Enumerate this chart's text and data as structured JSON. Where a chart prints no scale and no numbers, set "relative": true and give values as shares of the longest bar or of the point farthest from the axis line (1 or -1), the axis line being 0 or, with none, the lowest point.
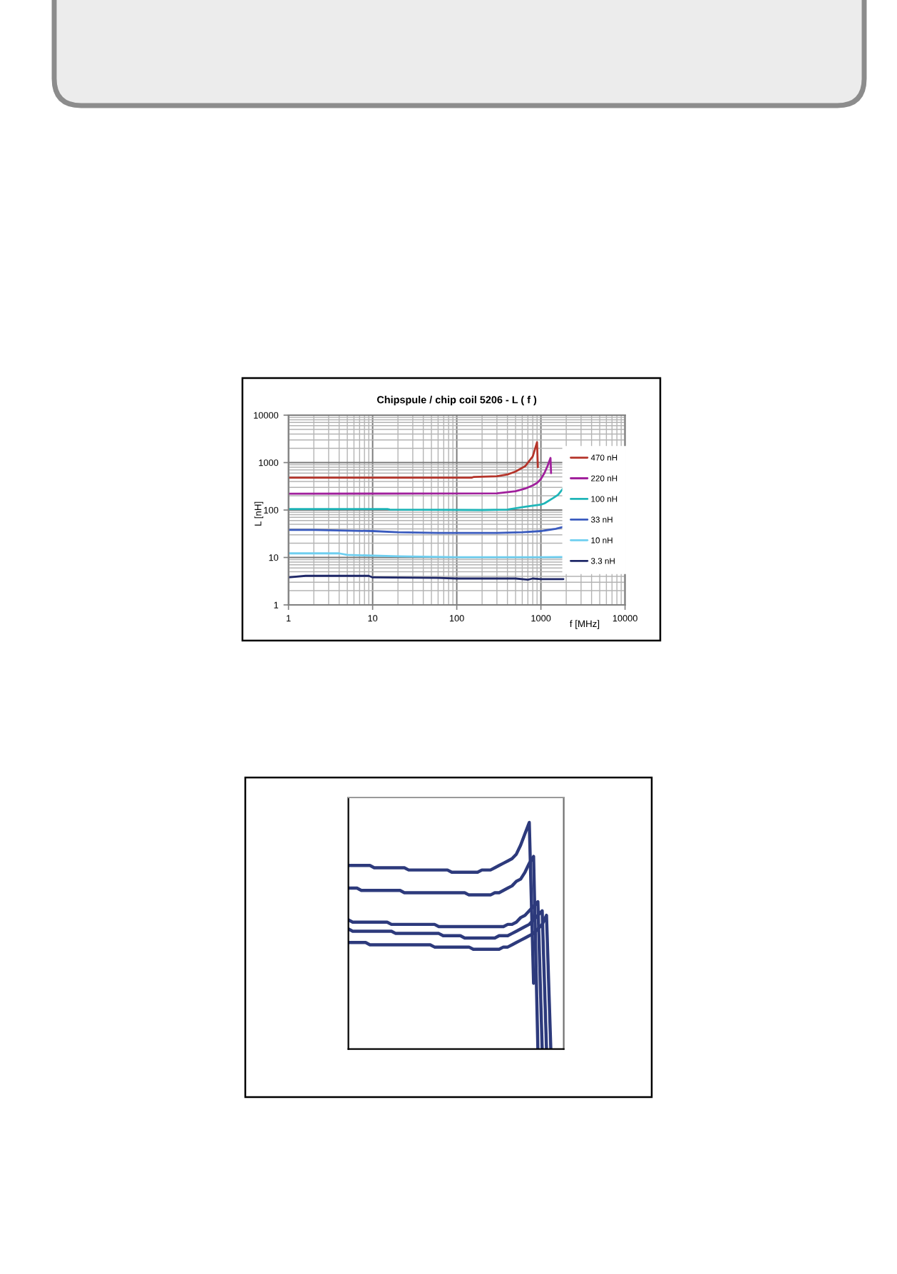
{
  "chart_data": [
    {
      "type": "line",
      "title": "Chipspule / chip coil 5206 - L ( f )",
      "xlabel": "f [MHz]",
      "ylabel": "L [nH]",
      "log": "xy",
      "xlim": [
        1,
        10000
      ],
      "ylim": [
        1,
        10000
      ],
      "xticks": [
        1,
        10,
        100,
        1000,
        10000
      ],
      "yticks": [
        1,
        10,
        100,
        1000,
        10000
      ],
      "grid": true,
      "legend": "right",
      "series": [
        {
          "name": "470 nH",
          "color": "#b5342a",
          "x": [
            1,
            150,
            160,
            300,
            400,
            500,
            650,
            800,
            900,
            920
          ],
          "values": [
            480,
            480,
            500,
            515,
            560,
            650,
            840,
            1350,
            2700,
            800
          ]
        },
        {
          "name": "220 nH",
          "color": "#a0209c",
          "x": [
            1,
            300,
            500,
            650,
            800,
            900,
            1000,
            1100,
            1200,
            1300,
            1320
          ],
          "values": [
            220,
            225,
            250,
            283,
            330,
            372,
            450,
            600,
            850,
            1250,
            600
          ]
        },
        {
          "name": "100 nH",
          "color": "#1fb5b8",
          "x": [
            1,
            15,
            16,
            200,
            400,
            650,
            1000,
            1100,
            1400,
            1600,
            1850
          ],
          "values": [
            105,
            105,
            102,
            100,
            102,
            117,
            130,
            138,
            179,
            210,
            290
          ]
        },
        {
          "name": "33 nH",
          "color": "#3a5bbf",
          "x": [
            1,
            2,
            10,
            20,
            60,
            100,
            300,
            600,
            1000,
            1500,
            1850
          ],
          "values": [
            38,
            38,
            36,
            34,
            33,
            33,
            33,
            34,
            36,
            40,
            44
          ]
        },
        {
          "name": "10 nH",
          "color": "#6fcff0",
          "x": [
            1,
            4,
            5,
            20,
            100,
            1000,
            1850
          ],
          "values": [
            12.2,
            12.2,
            11.3,
            10.6,
            10.1,
            10.1,
            10.2
          ]
        },
        {
          "name": "3.3 nH",
          "color": "#1f2868",
          "x": [
            1,
            1.6,
            9,
            10,
            60,
            100,
            500,
            700,
            800,
            1000,
            1850
          ],
          "values": [
            3.8,
            4.1,
            4.1,
            3.8,
            3.7,
            3.6,
            3.6,
            3.4,
            3.6,
            3.5,
            3.5
          ]
        }
      ]
    },
    {
      "type": "line",
      "relative": true,
      "categories": [
        null,
        null,
        null,
        null,
        null,
        null,
        null,
        null,
        null,
        null,
        null,
        null,
        null,
        null,
        null,
        null,
        null,
        null,
        null,
        null,
        null,
        null,
        null,
        null,
        null,
        null,
        null,
        null,
        null,
        null,
        null,
        null,
        null,
        null,
        null,
        null,
        null,
        null,
        null,
        null,
        null,
        null,
        null,
        null,
        null,
        null,
        null,
        null,
        null,
        null,
        null
      ],
      "series": [
        {
          "color": "#2d3a7c",
          "values": [
            0.81,
            0.81,
            0.81,
            0.81,
            0.81,
            0.81,
            0.8,
            0.8,
            0.8,
            0.8,
            0.8,
            0.8,
            0.8,
            0.8,
            0.79,
            0.79,
            0.79,
            0.79,
            0.79,
            0.79,
            0.79,
            0.79,
            0.79,
            0.79,
            0.78,
            0.78,
            0.78,
            0.78,
            0.78,
            0.78,
            0.78,
            0.79,
            0.79,
            0.79,
            0.8,
            0.81,
            0.82,
            0.83,
            0.84,
            0.86,
            0.9,
            0.95,
            1.0,
            0.29,
            null,
            null,
            null,
            null,
            null,
            null,
            null
          ]
        },
        {
          "color": "#2d3a7c",
          "values": [
            0.71,
            0.71,
            0.71,
            0.7,
            0.7,
            0.7,
            0.7,
            0.7,
            0.7,
            0.7,
            0.7,
            0.7,
            0.7,
            0.69,
            0.69,
            0.69,
            0.69,
            0.69,
            0.69,
            0.69,
            0.69,
            0.69,
            0.69,
            0.69,
            0.69,
            0.69,
            0.69,
            0.69,
            0.68,
            0.68,
            0.68,
            0.68,
            0.68,
            0.68,
            0.69,
            0.69,
            0.7,
            0.71,
            0.72,
            0.74,
            0.75,
            0.78,
            0.82,
            0.85,
            0.0,
            null,
            null,
            null,
            null,
            null,
            null
          ]
        },
        {
          "color": "#2d3a7c",
          "values": [
            0.57,
            0.56,
            0.56,
            0.56,
            0.56,
            0.56,
            0.56,
            0.56,
            0.56,
            0.56,
            0.55,
            0.55,
            0.55,
            0.55,
            0.55,
            0.55,
            0.55,
            0.55,
            0.55,
            0.55,
            0.55,
            0.54,
            0.54,
            0.54,
            0.54,
            0.54,
            0.54,
            0.54,
            0.54,
            0.54,
            0.54,
            0.54,
            0.54,
            0.54,
            0.54,
            0.54,
            0.54,
            0.55,
            0.55,
            0.56,
            0.58,
            0.59,
            0.61,
            0.63,
            0.65,
            0.0,
            null,
            null,
            null,
            null,
            null
          ]
        },
        {
          "color": "#2d3a7c",
          "values": [
            0.53,
            0.52,
            0.52,
            0.52,
            0.52,
            0.52,
            0.52,
            0.52,
            0.52,
            0.52,
            0.52,
            0.51,
            0.51,
            0.51,
            0.51,
            0.51,
            0.51,
            0.51,
            0.51,
            0.51,
            0.51,
            0.51,
            0.5,
            0.5,
            0.5,
            0.5,
            0.5,
            0.49,
            0.49,
            0.49,
            0.49,
            0.49,
            0.49,
            0.49,
            0.49,
            0.5,
            0.5,
            0.5,
            0.51,
            0.52,
            0.53,
            0.54,
            0.55,
            0.57,
            0.59,
            0.61,
            0.0,
            null,
            null,
            null,
            null
          ]
        },
        {
          "color": "#2d3a7c",
          "values": [
            0.47,
            0.47,
            0.47,
            0.47,
            0.47,
            0.46,
            0.46,
            0.46,
            0.46,
            0.46,
            0.46,
            0.46,
            0.46,
            0.46,
            0.46,
            0.46,
            0.46,
            0.46,
            0.46,
            0.46,
            0.45,
            0.45,
            0.45,
            0.45,
            0.45,
            0.45,
            0.45,
            0.45,
            0.45,
            0.44,
            0.44,
            0.44,
            0.44,
            0.44,
            0.44,
            0.44,
            0.45,
            0.45,
            0.46,
            0.47,
            0.48,
            0.49,
            0.5,
            0.51,
            0.53,
            0.55,
            0.59,
            0.0,
            null,
            null,
            null
          ]
        }
      ]
    }
  ]
}
